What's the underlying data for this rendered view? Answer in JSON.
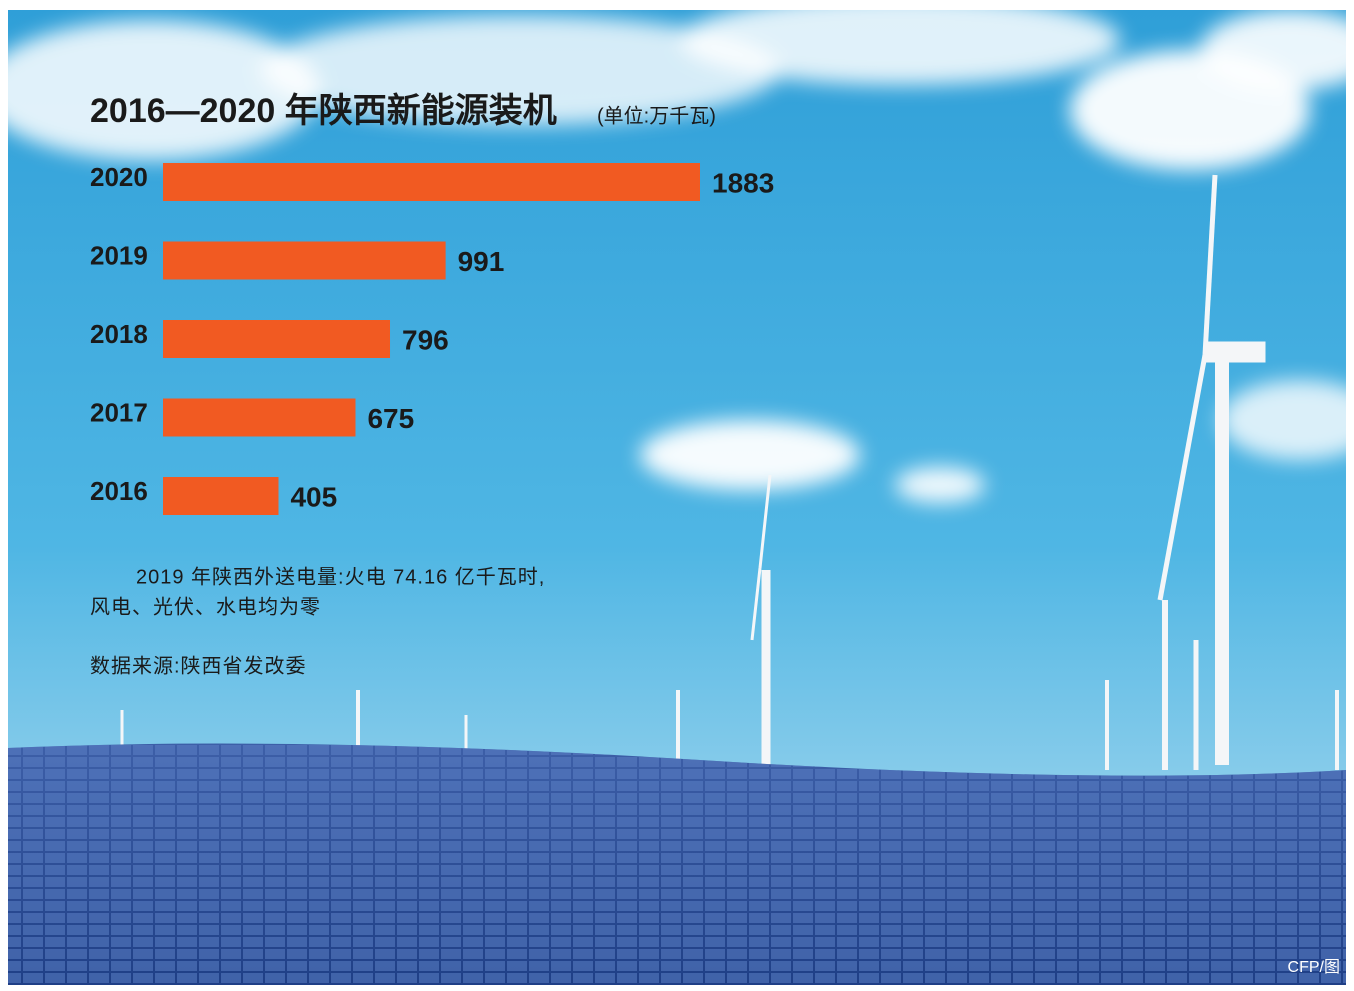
{
  "chart_data": {
    "type": "bar",
    "orientation": "horizontal",
    "title": "2016—2020 年陕西新能源装机",
    "unit": "(单位:万千瓦)",
    "categories": [
      "2020",
      "2019",
      "2018",
      "2017",
      "2016"
    ],
    "values": [
      1883,
      991,
      796,
      675,
      405
    ],
    "color": "#f15a22",
    "note": [
      "2019 年陕西外送电量:火电 74.16 亿千瓦时,",
      "风电、光伏、水电均为零"
    ],
    "source": "数据来源:陕西省发改委",
    "credit": "CFP/图"
  }
}
